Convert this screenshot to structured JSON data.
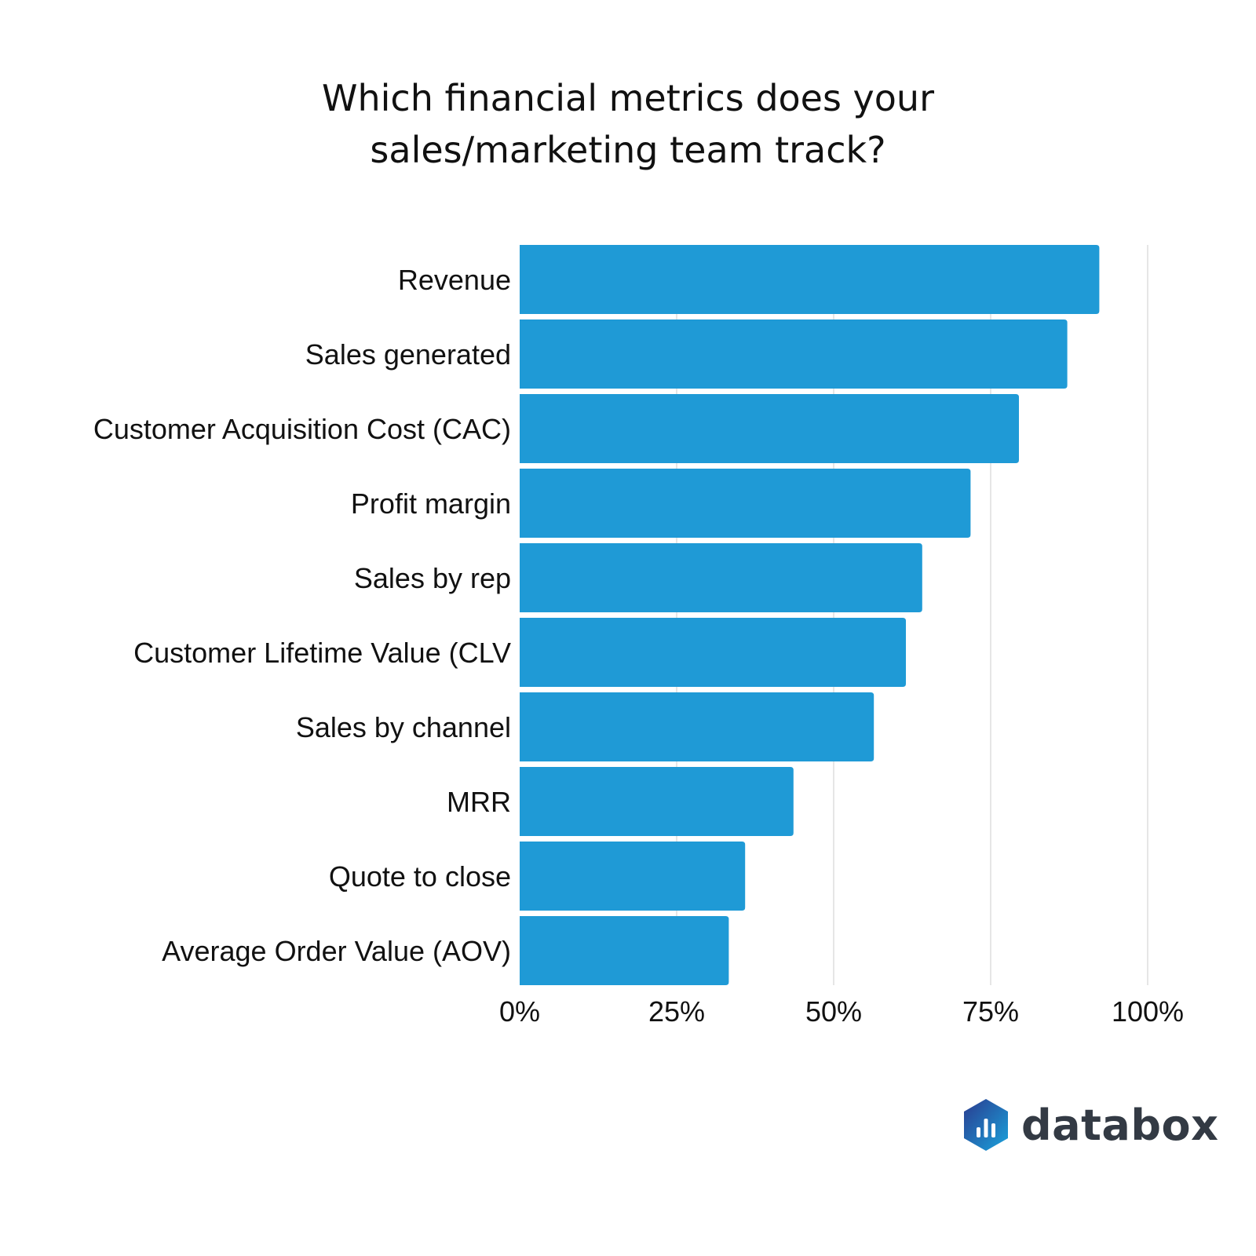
{
  "title_lines": [
    "Which financial metrics does your",
    "sales/marketing team track?"
  ],
  "chart_data": {
    "type": "bar",
    "orientation": "horizontal",
    "categories": [
      "Revenue",
      "Sales generated",
      "Customer Acquisition Cost (CAC)",
      "Profit margin",
      "Sales by rep",
      "Customer Lifetime Value (CLV",
      "Sales by channel",
      "MRR",
      "Quote to close",
      "Average Order Value (AOV)"
    ],
    "values": [
      92.3,
      87.2,
      79.5,
      71.8,
      64.1,
      61.5,
      56.4,
      43.6,
      35.9,
      33.3
    ],
    "xlim": [
      0,
      100
    ],
    "x_ticks": [
      0,
      25,
      50,
      75,
      100
    ],
    "x_tick_labels": [
      "0%",
      "25%",
      "50%",
      "75%",
      "100%"
    ],
    "grid": true,
    "bar_color": "#1f9ad6",
    "grid_color": "#dddddd"
  },
  "brand": {
    "name": "databox",
    "icon": "databox-logo-icon",
    "colors": [
      "#2a3b8f",
      "#1aa3dc"
    ]
  }
}
